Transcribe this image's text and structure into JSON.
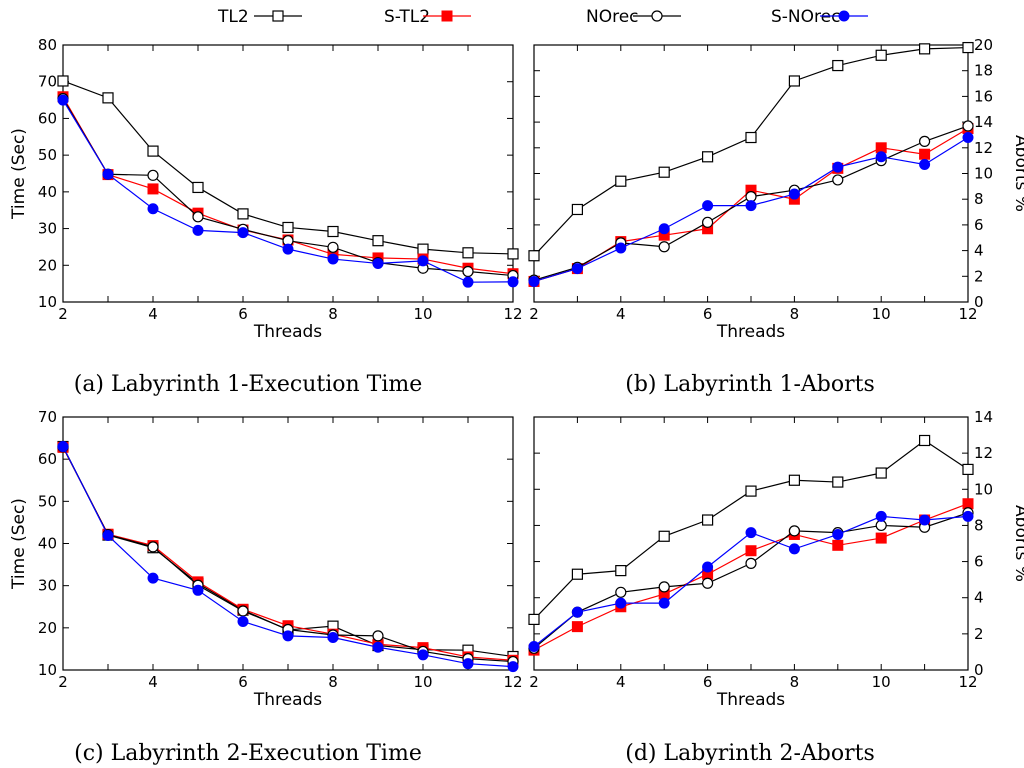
{
  "legend": [
    {
      "name": "TL2",
      "color": "#000000",
      "marker": "square-open"
    },
    {
      "name": "S-TL2",
      "color": "#ff0000",
      "marker": "square-filled"
    },
    {
      "name": "NOrec",
      "color": "#000000",
      "marker": "circle-open"
    },
    {
      "name": "S-NOrec",
      "color": "#0000ff",
      "marker": "circle-filled"
    }
  ],
  "chart_data": [
    {
      "type": "line",
      "caption": "(a) Labyrinth 1-Execution Time",
      "xlabel": "Threads",
      "ylabel": "Time (Sec)",
      "x": [
        2,
        3,
        4,
        5,
        6,
        7,
        8,
        9,
        10,
        11,
        12
      ],
      "xlim": [
        2,
        12
      ],
      "ylim": [
        10,
        80
      ],
      "yticks": [
        10,
        20,
        30,
        40,
        50,
        60,
        70,
        80
      ],
      "y_axis_side": "left",
      "series": [
        {
          "name": "TL2",
          "values": [
            70.2,
            65.6,
            51.1,
            41.2,
            34.0,
            30.3,
            29.2,
            26.7,
            24.4,
            23.4,
            23.1
          ]
        },
        {
          "name": "S-TL2",
          "values": [
            65.9,
            44.7,
            40.8,
            34.2,
            29.6,
            26.9,
            23.0,
            22.0,
            21.7,
            19.2,
            17.7
          ]
        },
        {
          "name": "NOrec",
          "values": [
            65.4,
            44.8,
            44.5,
            33.2,
            29.8,
            26.7,
            24.9,
            20.7,
            19.2,
            18.3,
            17.2
          ]
        },
        {
          "name": "S-NOrec",
          "values": [
            65.0,
            44.8,
            35.4,
            29.5,
            28.9,
            24.4,
            21.7,
            20.5,
            21.2,
            15.4,
            15.5
          ]
        }
      ]
    },
    {
      "type": "line",
      "caption": "(b) Labyrinth 1-Aborts",
      "xlabel": "Threads",
      "ylabel": "Aborts %",
      "x": [
        2,
        3,
        4,
        5,
        6,
        7,
        8,
        9,
        10,
        11,
        12
      ],
      "xlim": [
        2,
        12
      ],
      "ylim": [
        0,
        20
      ],
      "yticks": [
        0,
        2,
        4,
        6,
        8,
        10,
        12,
        14,
        16,
        18,
        20
      ],
      "y_axis_side": "right",
      "series": [
        {
          "name": "TL2",
          "values": [
            3.6,
            7.2,
            9.4,
            10.1,
            11.3,
            12.8,
            17.2,
            18.4,
            19.2,
            19.7,
            19.8
          ]
        },
        {
          "name": "S-TL2",
          "values": [
            1.6,
            2.6,
            4.7,
            5.2,
            5.7,
            8.7,
            8.0,
            10.4,
            12.0,
            11.5,
            13.5
          ]
        },
        {
          "name": "NOrec",
          "values": [
            1.7,
            2.7,
            4.6,
            4.3,
            6.2,
            8.2,
            8.7,
            9.5,
            11.0,
            12.5,
            13.7
          ]
        },
        {
          "name": "S-NOrec",
          "values": [
            1.6,
            2.6,
            4.2,
            5.7,
            7.5,
            7.5,
            8.4,
            10.5,
            11.3,
            10.7,
            12.8
          ]
        }
      ]
    },
    {
      "type": "line",
      "caption": "(c) Labyrinth 2-Execution Time",
      "xlabel": "Threads",
      "ylabel": "Time (Sec)",
      "x": [
        2,
        3,
        4,
        5,
        6,
        7,
        8,
        9,
        10,
        11,
        12
      ],
      "xlim": [
        2,
        12
      ],
      "ylim": [
        10,
        70
      ],
      "yticks": [
        10,
        20,
        30,
        40,
        50,
        60,
        70
      ],
      "y_axis_side": "left",
      "series": [
        {
          "name": "TL2",
          "values": [
            63.0,
            42.0,
            39.0,
            30.5,
            24.2,
            19.5,
            20.4,
            15.8,
            14.8,
            14.7,
            13.2
          ]
        },
        {
          "name": "S-TL2",
          "values": [
            62.8,
            42.2,
            39.5,
            30.9,
            24.4,
            20.5,
            18.5,
            16.1,
            15.3,
            13.1,
            12.3
          ]
        },
        {
          "name": "NOrec",
          "values": [
            62.9,
            42.1,
            39.2,
            30.1,
            24.0,
            19.6,
            18.3,
            18.1,
            14.4,
            12.7,
            12.0
          ]
        },
        {
          "name": "S-NOrec",
          "values": [
            63.0,
            41.9,
            31.8,
            28.9,
            21.5,
            18.1,
            17.7,
            15.4,
            13.6,
            11.5,
            10.8
          ]
        }
      ]
    },
    {
      "type": "line",
      "caption": "(d) Labyrinth 2-Aborts",
      "xlabel": "Threads",
      "ylabel": "Aborts %",
      "x": [
        2,
        3,
        4,
        5,
        6,
        7,
        8,
        9,
        10,
        11,
        12
      ],
      "xlim": [
        2,
        12
      ],
      "ylim": [
        0,
        14
      ],
      "yticks": [
        0,
        2,
        4,
        6,
        8,
        10,
        12,
        14
      ],
      "y_axis_side": "right",
      "series": [
        {
          "name": "TL2",
          "values": [
            2.8,
            5.3,
            5.5,
            7.4,
            8.3,
            9.9,
            10.5,
            10.4,
            10.9,
            12.7,
            11.1
          ]
        },
        {
          "name": "S-TL2",
          "values": [
            1.1,
            2.4,
            3.5,
            4.2,
            5.3,
            6.6,
            7.5,
            6.9,
            7.3,
            8.3,
            9.2
          ]
        },
        {
          "name": "NOrec",
          "values": [
            1.2,
            3.2,
            4.3,
            4.6,
            4.8,
            5.9,
            7.7,
            7.6,
            8.0,
            7.9,
            8.7
          ]
        },
        {
          "name": "S-NOrec",
          "values": [
            1.3,
            3.2,
            3.7,
            3.7,
            5.7,
            7.6,
            6.7,
            7.5,
            8.5,
            8.3,
            8.5
          ]
        }
      ]
    }
  ]
}
